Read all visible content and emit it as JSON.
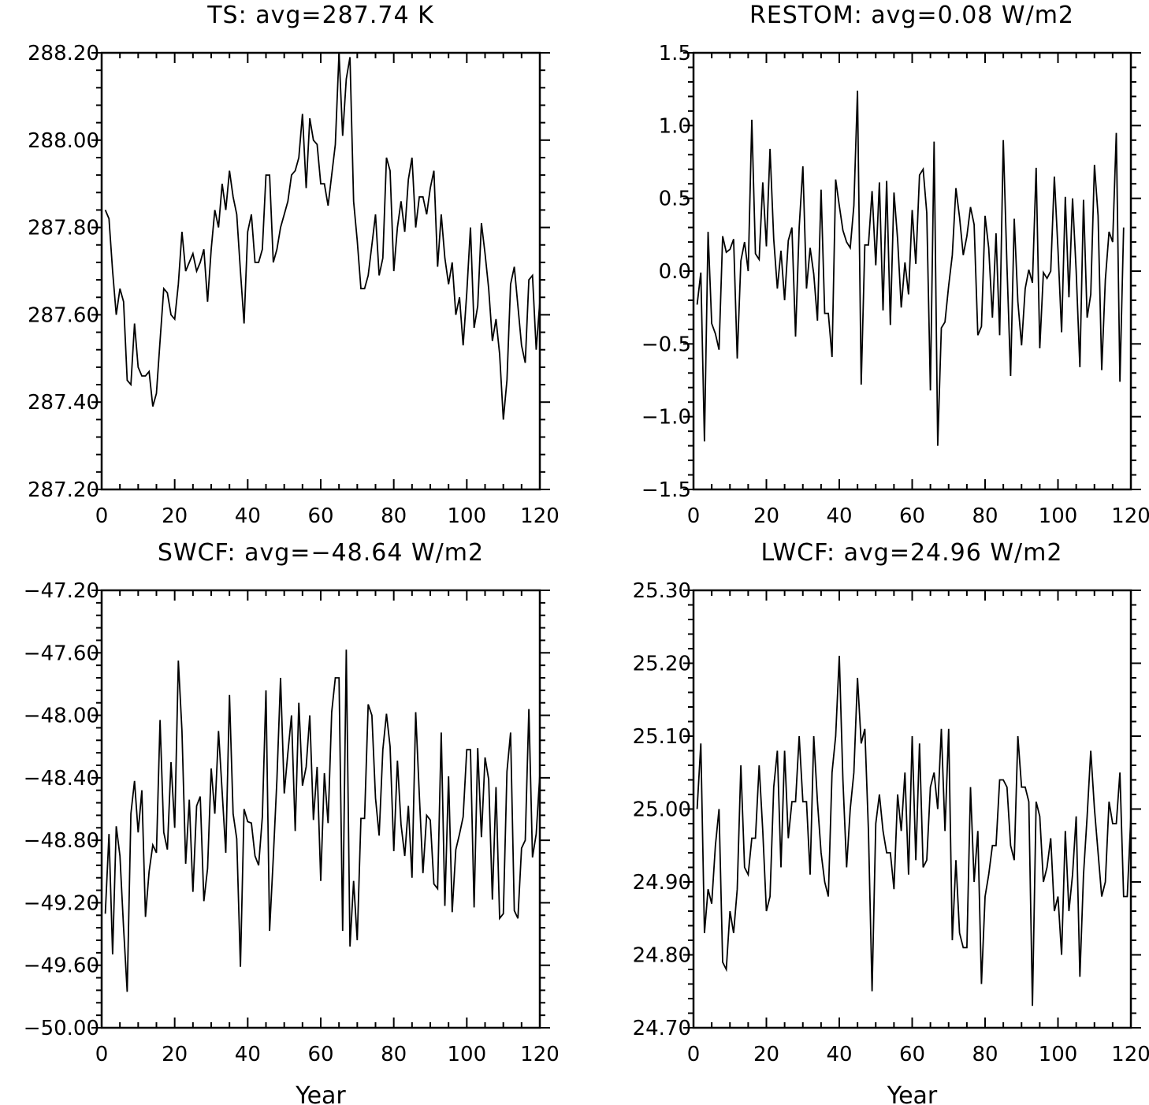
{
  "chart_data": [
    {
      "type": "line",
      "title": "TS: avg=287.74 K",
      "xlabel": "",
      "ylabel": "",
      "xlim": [
        0,
        120
      ],
      "ylim": [
        287.2,
        288.2
      ],
      "xticks": [
        "0",
        "20",
        "40",
        "60",
        "80",
        "100",
        "120"
      ],
      "yticks": [
        "287.20",
        "287.40",
        "287.60",
        "287.80",
        "288.00",
        "288.20"
      ],
      "series": [
        {
          "x_start": 1,
          "values": [
            287.84,
            287.82,
            287.7,
            287.6,
            287.66,
            287.63,
            287.45,
            287.44,
            287.58,
            287.48,
            287.46,
            287.46,
            287.47,
            287.39,
            287.42,
            287.54,
            287.66,
            287.65,
            287.6,
            287.59,
            287.67,
            287.79,
            287.7,
            287.72,
            287.74,
            287.7,
            287.72,
            287.75,
            287.63,
            287.75,
            287.84,
            287.8,
            287.9,
            287.84,
            287.93,
            287.87,
            287.83,
            287.7,
            287.58,
            287.79,
            287.83,
            287.72,
            287.72,
            287.75,
            287.92,
            287.92,
            287.72,
            287.75,
            287.8,
            287.83,
            287.86,
            287.92,
            287.93,
            287.96,
            288.06,
            287.89,
            288.05,
            288.0,
            287.99,
            287.9,
            287.9,
            287.85,
            287.92,
            287.99,
            288.2,
            288.01,
            288.14,
            288.19,
            287.86,
            287.77,
            287.66,
            287.66,
            287.69,
            287.76,
            287.83,
            287.69,
            287.73,
            287.96,
            287.93,
            287.7,
            287.8,
            287.86,
            287.79,
            287.91,
            287.96,
            287.8,
            287.87,
            287.87,
            287.83,
            287.89,
            287.93,
            287.71,
            287.83,
            287.73,
            287.67,
            287.72,
            287.6,
            287.64,
            287.53,
            287.65,
            287.8,
            287.57,
            287.62,
            287.81,
            287.74,
            287.66,
            287.54,
            287.59,
            287.51,
            287.36,
            287.45,
            287.67,
            287.71,
            287.62,
            287.53,
            287.49,
            287.68,
            287.69,
            287.52,
            287.63
          ]
        }
      ]
    },
    {
      "type": "line",
      "title": "RESTOM: avg=0.08 W/m2",
      "xlabel": "",
      "ylabel": "",
      "xlim": [
        0,
        120
      ],
      "ylim": [
        -1.5,
        1.5
      ],
      "xticks": [
        "0",
        "20",
        "40",
        "60",
        "80",
        "100",
        "120"
      ],
      "yticks": [
        "−1.5",
        "−1.0",
        "−0.5",
        "0.0",
        "0.5",
        "1.0",
        "1.5"
      ],
      "series": [
        {
          "x_start": 1,
          "values": [
            -0.23,
            -0.01,
            -1.17,
            0.27,
            -0.36,
            -0.43,
            -0.54,
            0.24,
            0.13,
            0.15,
            0.22,
            -0.6,
            0.07,
            0.2,
            0.0,
            1.04,
            0.12,
            0.08,
            0.61,
            0.17,
            0.84,
            0.22,
            -0.12,
            0.14,
            -0.2,
            0.21,
            0.3,
            -0.45,
            0.3,
            0.72,
            -0.12,
            0.16,
            -0.02,
            -0.34,
            0.56,
            -0.29,
            -0.29,
            -0.59,
            0.63,
            0.45,
            0.28,
            0.2,
            0.16,
            0.45,
            1.24,
            -0.78,
            0.18,
            0.18,
            0.55,
            0.04,
            0.61,
            -0.27,
            0.62,
            -0.37,
            0.54,
            0.22,
            -0.25,
            0.06,
            -0.16,
            0.42,
            0.05,
            0.66,
            0.7,
            0.4,
            -0.82,
            0.89,
            -1.2,
            -0.39,
            -0.35,
            -0.1,
            0.11,
            0.57,
            0.37,
            0.11,
            0.24,
            0.44,
            0.32,
            -0.44,
            -0.38,
            0.38,
            0.16,
            -0.32,
            0.26,
            -0.44,
            0.9,
            0.03,
            -0.72,
            0.36,
            -0.21,
            -0.51,
            -0.12,
            0.01,
            -0.08,
            0.71,
            -0.53,
            -0.01,
            -0.05,
            0.0,
            0.65,
            0.15,
            -0.42,
            0.51,
            -0.18,
            0.5,
            0.0,
            -0.66,
            0.49,
            -0.32,
            -0.16,
            0.73,
            0.38,
            -0.68,
            -0.06,
            0.27,
            0.2,
            0.95,
            -0.76,
            0.3
          ]
        }
      ]
    },
    {
      "type": "line",
      "title": "SWCF: avg=−48.64 W/m2",
      "xlabel": "Year",
      "ylabel": "",
      "xlim": [
        0,
        120
      ],
      "ylim": [
        -50.0,
        -47.2
      ],
      "xticks": [
        "0",
        "20",
        "40",
        "60",
        "80",
        "100",
        "120"
      ],
      "yticks": [
        "−50.00",
        "−49.60",
        "−49.20",
        "−48.80",
        "−48.40",
        "−48.00",
        "−47.60",
        "−47.20"
      ],
      "series": [
        {
          "x_start": 1,
          "values": [
            -49.27,
            -48.76,
            -49.53,
            -48.71,
            -48.9,
            -49.36,
            -49.77,
            -48.63,
            -48.42,
            -48.75,
            -48.48,
            -49.29,
            -49.0,
            -48.83,
            -48.88,
            -48.03,
            -48.75,
            -48.86,
            -48.3,
            -48.72,
            -47.65,
            -48.1,
            -48.95,
            -48.54,
            -49.13,
            -48.58,
            -48.52,
            -49.19,
            -48.98,
            -48.34,
            -48.63,
            -48.1,
            -48.49,
            -48.88,
            -47.87,
            -48.63,
            -48.79,
            -49.61,
            -48.6,
            -48.68,
            -48.69,
            -48.9,
            -48.96,
            -48.65,
            -47.84,
            -49.38,
            -48.91,
            -48.41,
            -47.76,
            -48.5,
            -48.24,
            -48.0,
            -48.74,
            -47.92,
            -48.45,
            -48.33,
            -48.0,
            -48.67,
            -48.33,
            -49.06,
            -48.37,
            -48.69,
            -47.98,
            -47.76,
            -47.76,
            -49.38,
            -47.58,
            -49.48,
            -49.06,
            -49.44,
            -48.66,
            -48.66,
            -47.93,
            -48.0,
            -48.53,
            -48.77,
            -48.22,
            -47.99,
            -48.2,
            -48.87,
            -48.29,
            -48.7,
            -48.9,
            -48.58,
            -49.04,
            -47.98,
            -48.51,
            -49.01,
            -48.64,
            -48.67,
            -49.08,
            -49.11,
            -48.11,
            -49.22,
            -48.39,
            -49.26,
            -48.86,
            -48.76,
            -48.65,
            -48.22,
            -48.22,
            -49.23,
            -48.21,
            -48.78,
            -48.27,
            -48.41,
            -49.18,
            -48.46,
            -49.3,
            -49.27,
            -48.36,
            -48.11,
            -49.25,
            -49.3,
            -48.85,
            -48.8,
            -47.96,
            -48.91,
            -48.76,
            -48.38
          ]
        }
      ]
    },
    {
      "type": "line",
      "title": "LWCF: avg=24.96 W/m2",
      "xlabel": "Year",
      "ylabel": "",
      "xlim": [
        0,
        120
      ],
      "ylim": [
        24.7,
        25.3
      ],
      "xticks": [
        "0",
        "20",
        "40",
        "60",
        "80",
        "100",
        "120"
      ],
      "yticks": [
        "24.70",
        "24.80",
        "24.90",
        "25.00",
        "25.10",
        "25.20",
        "25.30"
      ],
      "series": [
        {
          "x_start": 1,
          "values": [
            25.0,
            25.09,
            24.83,
            24.89,
            24.87,
            24.95,
            25.0,
            24.79,
            24.78,
            24.86,
            24.83,
            24.89,
            25.06,
            24.92,
            24.91,
            24.96,
            24.96,
            25.06,
            24.97,
            24.86,
            24.88,
            25.03,
            25.08,
            24.92,
            25.08,
            24.96,
            25.01,
            25.01,
            25.1,
            25.01,
            25.01,
            24.91,
            25.1,
            25.01,
            24.94,
            24.9,
            24.88,
            25.05,
            25.1,
            25.21,
            25.04,
            24.92,
            25.0,
            25.05,
            25.18,
            25.09,
            25.11,
            24.97,
            24.75,
            24.98,
            25.02,
            24.97,
            24.94,
            24.94,
            24.89,
            25.02,
            24.97,
            25.05,
            24.91,
            25.1,
            24.93,
            25.09,
            24.92,
            24.93,
            25.03,
            25.05,
            25.0,
            25.11,
            24.97,
            25.11,
            24.82,
            24.93,
            24.83,
            24.81,
            24.81,
            25.03,
            24.9,
            24.97,
            24.76,
            24.88,
            24.91,
            24.95,
            24.95,
            25.04,
            25.04,
            25.03,
            24.95,
            24.93,
            25.1,
            25.03,
            25.03,
            25.01,
            24.73,
            25.01,
            24.99,
            24.9,
            24.92,
            24.96,
            24.86,
            24.88,
            24.8,
            24.97,
            24.86,
            24.91,
            24.99,
            24.77,
            24.91,
            24.99,
            25.08,
            25.0,
            24.94,
            24.88,
            24.9,
            25.01,
            24.98,
            24.98,
            25.05,
            24.88,
            24.88,
            24.99
          ]
        }
      ]
    }
  ]
}
